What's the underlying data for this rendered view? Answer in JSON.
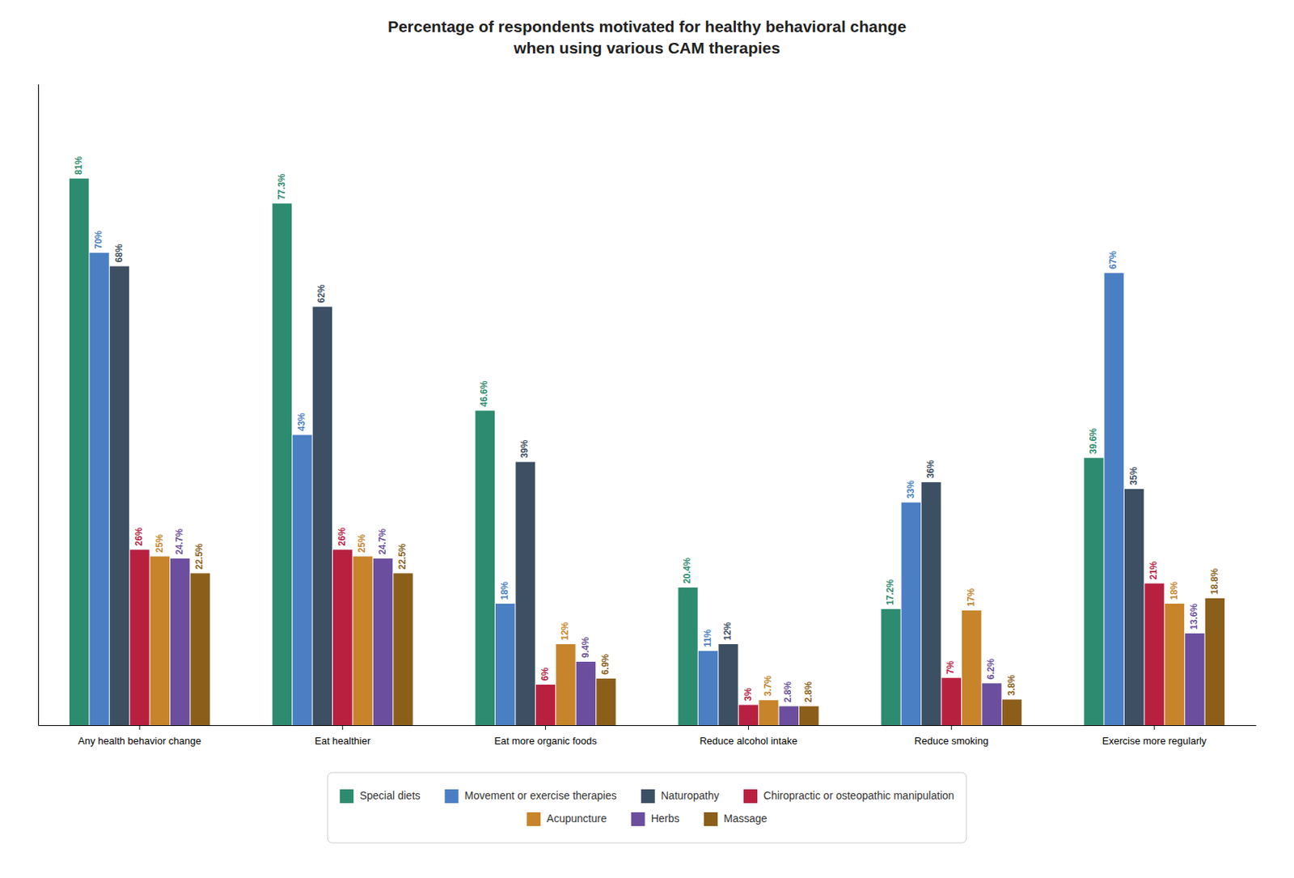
{
  "chart_data": {
    "type": "bar",
    "title": "Percentage of respondents motivated for healthy behavioral change\nwhen using various CAM therapies",
    "categories": [
      "Any health behavior change",
      "Eat healthier",
      "Eat more organic foods",
      "Reduce alcohol intake",
      "Reduce smoking",
      "Exercise more regularly"
    ],
    "series": [
      {
        "name": "Special diets",
        "color": "#2d8b6f",
        "values": [
          81.0,
          77.3,
          46.6,
          20.4,
          17.2,
          39.6
        ],
        "value_labels": [
          "81%",
          "77.3%",
          "46.6%",
          "20.4%",
          "17.2%",
          "39.6%"
        ]
      },
      {
        "name": "Movement or exercise therapies",
        "color": "#4b7fc4",
        "values": [
          70.0,
          43.0,
          18.0,
          11.0,
          33.0,
          67.0
        ],
        "value_labels": [
          "70%",
          "43%",
          "18%",
          "11%",
          "33%",
          "67%"
        ]
      },
      {
        "name": "Naturopathy",
        "color": "#3d4f63",
        "values": [
          68.0,
          62.0,
          39.0,
          12.0,
          36.0,
          35.0
        ],
        "value_labels": [
          "68%",
          "62%",
          "39%",
          "12%",
          "36%",
          "35%"
        ]
      },
      {
        "name": "Chiropractic or osteopathic manipulation",
        "color": "#b82040",
        "values": [
          26.0,
          26.0,
          6.0,
          3.0,
          7.0,
          21.0
        ],
        "value_labels": [
          "26%",
          "26%",
          "6%",
          "3%",
          "7%",
          "21%"
        ]
      },
      {
        "name": "Acupuncture",
        "color": "#c8842a",
        "values": [
          25.0,
          25.0,
          12.0,
          3.7,
          17.0,
          18.0
        ],
        "value_labels": [
          "25%",
          "25%",
          "12%",
          "3.7%",
          "17%",
          "18%"
        ]
      },
      {
        "name": "Herbs",
        "color": "#6b4f9e",
        "values": [
          24.7,
          24.7,
          9.4,
          2.8,
          6.2,
          13.6
        ],
        "value_labels": [
          "24.7%",
          "24.7%",
          "9.4%",
          "2.8%",
          "6.2%",
          "13.6%"
        ]
      },
      {
        "name": "Massage",
        "color": "#8b5e1a",
        "values": [
          22.5,
          22.5,
          6.9,
          2.8,
          3.8,
          18.8
        ],
        "value_labels": [
          "22.5%",
          "22.5%",
          "6.9%",
          "2.8%",
          "3.8%",
          "18.8%"
        ]
      }
    ],
    "ylim": [
      0,
      95
    ],
    "grid": false,
    "legend": "bottom",
    "data_labels": true,
    "tick_labels": "x"
  }
}
